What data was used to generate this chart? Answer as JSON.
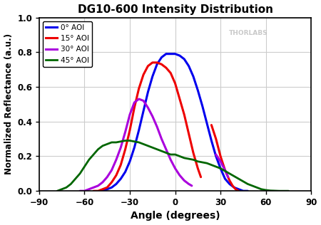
{
  "title": "DG10-600 Intensity Distribution",
  "xlabel": "Angle (degrees)",
  "ylabel": "Normalized Reflectance (a.u.)",
  "xlim": [
    -90,
    90
  ],
  "ylim": [
    0.0,
    1.0
  ],
  "xticks": [
    -90,
    -60,
    -30,
    0,
    30,
    60,
    90
  ],
  "yticks": [
    0.0,
    0.2,
    0.4,
    0.6,
    0.8,
    1.0
  ],
  "background_color": "#ffffff",
  "grid_color": "#cccccc",
  "watermark": "THORLABS",
  "curves": {
    "aoi0": {
      "label": "0° AOI",
      "color": "#0000ee",
      "linewidth": 2.2,
      "segments": [
        {
          "x": [
            -48,
            -45,
            -42,
            -39,
            -36,
            -33,
            -30,
            -27,
            -24,
            -21,
            -18,
            -15,
            -12,
            -9,
            -6,
            -3,
            0,
            3,
            6,
            9,
            12,
            15,
            18,
            21,
            24,
            27,
            30,
            33,
            36,
            39,
            42,
            45,
            48
          ],
          "y": [
            0.0,
            0.01,
            0.02,
            0.04,
            0.07,
            0.11,
            0.17,
            0.25,
            0.35,
            0.46,
            0.57,
            0.66,
            0.73,
            0.77,
            0.79,
            0.79,
            0.79,
            0.78,
            0.76,
            0.72,
            0.66,
            0.58,
            0.49,
            0.39,
            0.29,
            0.2,
            0.13,
            0.07,
            0.04,
            0.02,
            0.01,
            0.0,
            0.0
          ]
        }
      ]
    },
    "aoi15": {
      "label": "15° AOI",
      "color": "#ee0000",
      "linewidth": 2.2,
      "segments": [
        {
          "x": [
            -54,
            -51,
            -48,
            -45,
            -42,
            -39,
            -36,
            -33,
            -30,
            -27,
            -24,
            -21,
            -18,
            -15,
            -12,
            -9,
            -6,
            -3,
            0,
            3,
            6,
            9,
            12,
            15,
            17
          ],
          "y": [
            0.0,
            0.0,
            0.01,
            0.02,
            0.05,
            0.09,
            0.15,
            0.24,
            0.35,
            0.48,
            0.59,
            0.67,
            0.72,
            0.74,
            0.74,
            0.73,
            0.71,
            0.68,
            0.62,
            0.53,
            0.44,
            0.33,
            0.22,
            0.13,
            0.08
          ]
        },
        {
          "x": [
            24,
            27,
            30,
            33,
            36,
            38,
            40,
            42
          ],
          "y": [
            0.38,
            0.3,
            0.2,
            0.12,
            0.06,
            0.03,
            0.01,
            0.0
          ]
        }
      ]
    },
    "aoi30": {
      "label": "30° AOI",
      "color": "#aa00dd",
      "linewidth": 2.2,
      "segments": [
        {
          "x": [
            -63,
            -60,
            -57,
            -54,
            -51,
            -48,
            -45,
            -42,
            -39,
            -36,
            -33,
            -30,
            -27,
            -24,
            -21,
            -18,
            -15,
            -12,
            -9,
            -6,
            -3,
            0,
            3,
            6,
            9,
            11
          ],
          "y": [
            0.0,
            0.0,
            0.01,
            0.02,
            0.03,
            0.05,
            0.08,
            0.12,
            0.18,
            0.25,
            0.34,
            0.44,
            0.51,
            0.53,
            0.52,
            0.48,
            0.43,
            0.37,
            0.3,
            0.24,
            0.18,
            0.13,
            0.09,
            0.06,
            0.04,
            0.03
          ]
        },
        {
          "x": [
            27,
            30,
            33,
            35
          ],
          "y": [
            0.21,
            0.17,
            0.12,
            0.08
          ]
        }
      ]
    },
    "aoi45": {
      "label": "45° AOI",
      "color": "#006600",
      "linewidth": 2.0,
      "segments": [
        {
          "x": [
            -78,
            -75,
            -72,
            -69,
            -66,
            -63,
            -60,
            -57,
            -54,
            -51,
            -48,
            -45,
            -42,
            -39,
            -36,
            -33,
            -30,
            -27,
            -24,
            -21,
            -18,
            -15,
            -12,
            -9,
            -6,
            -3,
            0,
            3,
            6,
            9,
            12,
            15,
            18,
            21,
            24,
            27,
            30,
            33,
            36,
            39,
            42,
            45,
            48,
            51,
            54,
            57,
            60,
            63,
            66,
            69,
            72,
            75
          ],
          "y": [
            0.0,
            0.01,
            0.02,
            0.04,
            0.07,
            0.1,
            0.14,
            0.18,
            0.21,
            0.24,
            0.26,
            0.27,
            0.28,
            0.28,
            0.285,
            0.29,
            0.29,
            0.285,
            0.28,
            0.27,
            0.26,
            0.25,
            0.24,
            0.23,
            0.22,
            0.21,
            0.21,
            0.2,
            0.19,
            0.185,
            0.18,
            0.17,
            0.165,
            0.16,
            0.15,
            0.14,
            0.13,
            0.115,
            0.1,
            0.085,
            0.07,
            0.055,
            0.04,
            0.03,
            0.02,
            0.01,
            0.005,
            0.002,
            0.001,
            0.0,
            0.0,
            0.0
          ]
        }
      ]
    }
  }
}
